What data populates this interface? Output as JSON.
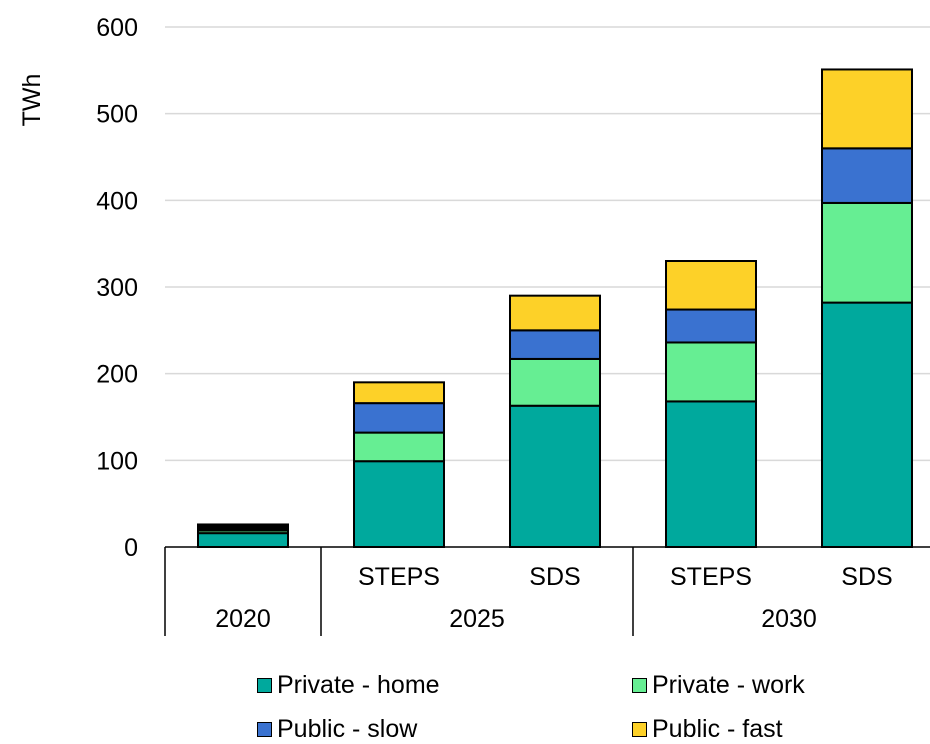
{
  "chart_data": {
    "type": "bar",
    "stacked": true,
    "ylabel": "TWh",
    "ylim": [
      0,
      600
    ],
    "yticks": [
      0,
      100,
      200,
      300,
      400,
      500,
      600
    ],
    "grid": true,
    "legend_position": "bottom",
    "groups": [
      {
        "label": "2020",
        "categories": [
          ""
        ]
      },
      {
        "label": "2025",
        "categories": [
          "STEPS",
          "SDS"
        ]
      },
      {
        "label": "2030",
        "categories": [
          "STEPS",
          "SDS"
        ]
      }
    ],
    "series": [
      {
        "name": "Private - home",
        "color": "#00A99D",
        "values": [
          16,
          99,
          163,
          168,
          282
        ]
      },
      {
        "name": "Private - work",
        "color": "#66EE93",
        "values": [
          3,
          33,
          54,
          68,
          115
        ]
      },
      {
        "name": "Public - slow",
        "color": "#3A72D0",
        "values": [
          2,
          34,
          33,
          38,
          63
        ]
      },
      {
        "name": "Public - fast",
        "color": "#FDD128",
        "values": [
          1,
          24,
          40,
          56,
          91
        ]
      }
    ],
    "other_segment": {
      "color": "#000000",
      "values": [
        4,
        0,
        0,
        0,
        0
      ]
    }
  }
}
